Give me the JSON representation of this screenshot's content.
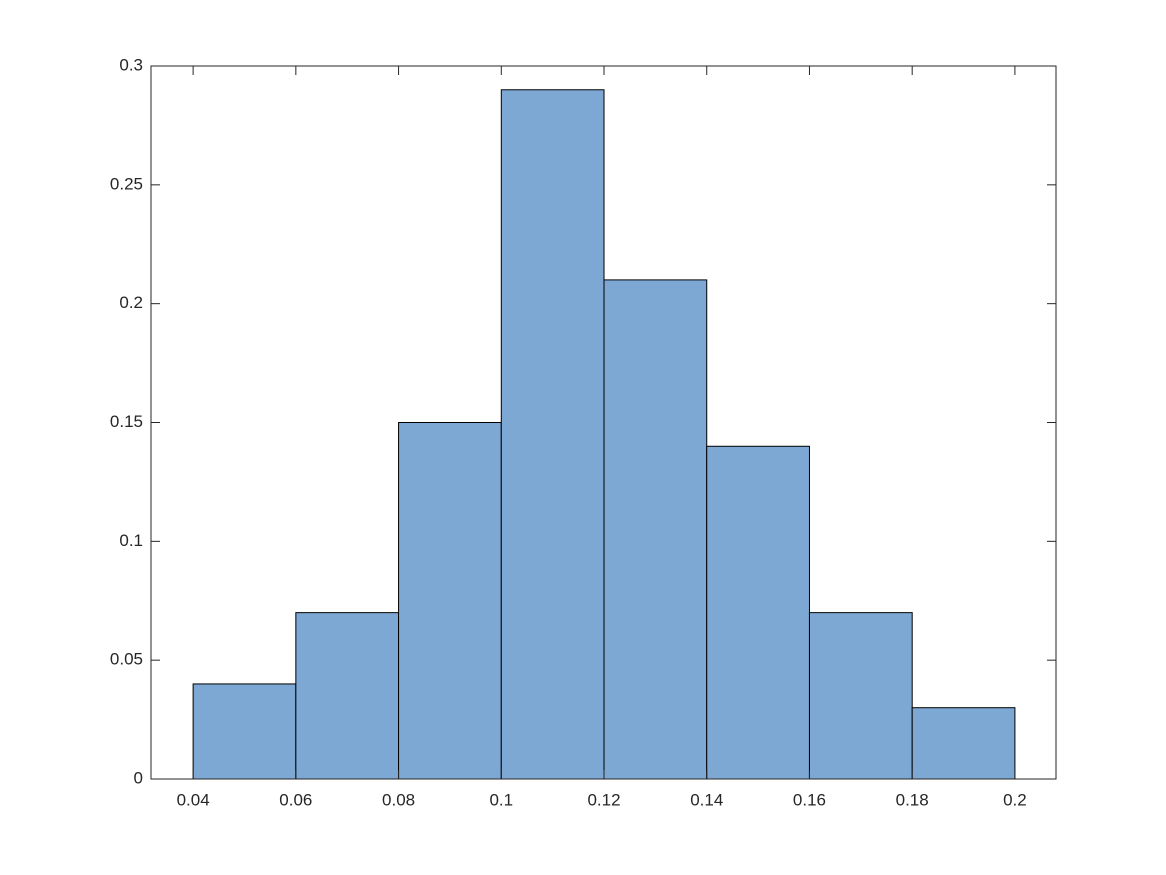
{
  "chart_data": {
    "type": "histogram",
    "bins": [
      0.04,
      0.06,
      0.08,
      0.1,
      0.12,
      0.14,
      0.16,
      0.18,
      0.2
    ],
    "values": [
      0.04,
      0.07,
      0.15,
      0.29,
      0.21,
      0.14,
      0.07,
      0.03
    ],
    "color": "#7ea8d4",
    "xlim": [
      0.0318,
      0.208
    ],
    "xticks": [
      0.04,
      0.06,
      0.08,
      0.1,
      0.12,
      0.14,
      0.16,
      0.18,
      0.2
    ],
    "ylim": [
      0,
      0.3
    ],
    "yticks": [
      0,
      0.05,
      0.1,
      0.15,
      0.2,
      0.25,
      0.3
    ],
    "grid": false
  }
}
